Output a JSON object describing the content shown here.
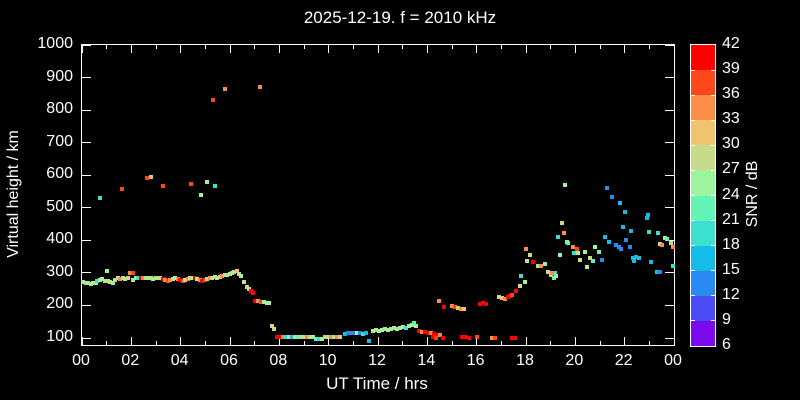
{
  "window": {
    "background": "#000000",
    "foreground": "#ffffff"
  },
  "chart_data": {
    "type": "scatter",
    "title": "2025-12-19. f = 2010 kHz",
    "xlabel": "UT Time / hrs",
    "ylabel": "Virtual height / km",
    "xlim": [
      0,
      24
    ],
    "ylim": [
      100,
      1000
    ],
    "grid": false,
    "x_major_tick_hours": [
      0,
      2,
      4,
      6,
      8,
      10,
      12,
      14,
      16,
      18,
      20,
      22,
      24
    ],
    "x_tick_labels": [
      "00",
      "02",
      "04",
      "06",
      "08",
      "10",
      "12",
      "14",
      "16",
      "18",
      "20",
      "22",
      "00"
    ],
    "x_minor_tick_hours": [
      1,
      3,
      5,
      7,
      9,
      11,
      13,
      15,
      17,
      19,
      21,
      23
    ],
    "y_ticks": [
      100,
      200,
      300,
      400,
      500,
      600,
      700,
      800,
      900,
      1000
    ],
    "colorbar": {
      "label": "SNR / dB",
      "min": 6,
      "max": 42,
      "step": 3,
      "tick_values": [
        6,
        9,
        12,
        15,
        18,
        21,
        24,
        27,
        30,
        33,
        36,
        39,
        42
      ],
      "colors_low_to_high": [
        "#7a0bee",
        "#4b4bf5",
        "#2a8af4",
        "#15bce8",
        "#3cdfd0",
        "#61f4b4",
        "#9df49d",
        "#c6dc8b",
        "#f0c46e",
        "#fc8d47",
        "#ff4719",
        "#ff0000"
      ]
    },
    "points_format": [
      "ut_hours",
      "virtual_height_km",
      "snr_db"
    ],
    "points": [
      [
        0.05,
        272,
        25
      ],
      [
        0.15,
        270,
        27
      ],
      [
        0.25,
        268,
        25
      ],
      [
        0.35,
        266,
        27
      ],
      [
        0.45,
        270,
        25
      ],
      [
        0.55,
        268,
        25
      ],
      [
        0.62,
        275,
        19
      ],
      [
        0.72,
        278,
        27
      ],
      [
        0.82,
        280,
        25
      ],
      [
        0.92,
        274,
        27
      ],
      [
        1.0,
        307,
        25
      ],
      [
        1.05,
        276,
        25
      ],
      [
        1.15,
        272,
        28
      ],
      [
        1.25,
        270,
        25
      ],
      [
        1.35,
        278,
        27
      ],
      [
        1.45,
        283,
        25
      ],
      [
        1.55,
        280,
        34
      ],
      [
        1.65,
        283,
        27
      ],
      [
        1.75,
        280,
        25
      ],
      [
        1.85,
        283,
        28
      ],
      [
        1.95,
        300,
        34
      ],
      [
        2.05,
        300,
        36
      ],
      [
        2.08,
        278,
        27
      ],
      [
        2.18,
        283,
        25
      ],
      [
        2.28,
        285,
        19
      ],
      [
        2.38,
        283,
        40
      ],
      [
        2.48,
        285,
        34
      ],
      [
        2.58,
        283,
        27
      ],
      [
        2.68,
        285,
        25
      ],
      [
        2.78,
        283,
        27
      ],
      [
        2.88,
        280,
        25
      ],
      [
        2.98,
        283,
        27
      ],
      [
        3.08,
        285,
        25
      ],
      [
        3.18,
        283,
        27
      ],
      [
        3.28,
        280,
        40
      ],
      [
        3.38,
        278,
        34
      ],
      [
        3.48,
        275,
        36
      ],
      [
        3.58,
        278,
        34
      ],
      [
        3.68,
        280,
        27
      ],
      [
        3.78,
        283,
        25
      ],
      [
        3.88,
        280,
        34
      ],
      [
        3.98,
        278,
        40
      ],
      [
        4.08,
        275,
        36
      ],
      [
        4.18,
        278,
        27
      ],
      [
        4.28,
        280,
        34
      ],
      [
        4.38,
        283,
        27
      ],
      [
        4.48,
        285,
        25
      ],
      [
        4.58,
        283,
        40
      ],
      [
        4.68,
        280,
        25
      ],
      [
        4.78,
        278,
        34
      ],
      [
        4.88,
        275,
        40
      ],
      [
        4.98,
        278,
        36
      ],
      [
        5.08,
        280,
        27
      ],
      [
        5.18,
        283,
        34
      ],
      [
        5.28,
        285,
        27
      ],
      [
        5.38,
        288,
        25
      ],
      [
        5.48,
        285,
        27
      ],
      [
        5.58,
        288,
        28
      ],
      [
        5.68,
        290,
        34
      ],
      [
        5.78,
        292,
        27
      ],
      [
        5.88,
        295,
        25
      ],
      [
        5.98,
        297,
        27
      ],
      [
        6.08,
        300,
        25
      ],
      [
        6.18,
        303,
        27
      ],
      [
        6.28,
        305,
        30
      ],
      [
        6.35,
        298,
        27
      ],
      [
        6.45,
        290,
        25
      ],
      [
        0.73,
        530,
        19
      ],
      [
        1.62,
        558,
        36
      ],
      [
        2.64,
        591,
        36
      ],
      [
        2.78,
        594,
        30
      ],
      [
        3.28,
        567,
        36
      ],
      [
        4.42,
        573,
        36
      ],
      [
        4.82,
        539,
        25
      ],
      [
        5.07,
        579,
        25
      ],
      [
        5.39,
        567,
        19
      ],
      [
        5.3,
        832,
        36
      ],
      [
        5.8,
        866,
        33
      ],
      [
        7.22,
        871,
        33
      ],
      [
        6.57,
        271,
        28
      ],
      [
        6.68,
        258,
        27
      ],
      [
        6.77,
        250,
        28
      ],
      [
        6.85,
        243,
        40
      ],
      [
        6.93,
        237,
        40
      ],
      [
        7.01,
        213,
        40
      ],
      [
        7.12,
        215,
        34
      ],
      [
        7.25,
        212,
        36
      ],
      [
        7.38,
        210,
        25
      ],
      [
        7.5,
        208,
        25
      ],
      [
        7.58,
        207,
        25
      ],
      [
        7.7,
        137,
        28
      ],
      [
        7.78,
        128,
        28
      ],
      [
        7.92,
        103,
        40
      ],
      [
        8.04,
        103,
        40
      ],
      [
        8.16,
        104,
        34
      ],
      [
        8.28,
        103,
        19
      ],
      [
        8.4,
        102,
        28
      ],
      [
        8.52,
        103,
        16
      ],
      [
        8.64,
        104,
        28
      ],
      [
        8.76,
        103,
        22
      ],
      [
        8.88,
        104,
        27
      ],
      [
        9.0,
        103,
        28
      ],
      [
        9.12,
        104,
        34
      ],
      [
        9.24,
        103,
        28
      ],
      [
        9.36,
        102,
        25
      ],
      [
        9.48,
        97,
        22
      ],
      [
        9.6,
        96,
        19
      ],
      [
        9.72,
        98,
        25
      ],
      [
        9.84,
        103,
        28
      ],
      [
        9.96,
        104,
        27
      ],
      [
        10.08,
        103,
        34
      ],
      [
        10.2,
        104,
        28
      ],
      [
        10.32,
        103,
        33
      ],
      [
        10.44,
        104,
        28
      ],
      [
        10.65,
        113,
        16
      ],
      [
        10.78,
        114,
        13
      ],
      [
        10.9,
        116,
        13
      ],
      [
        11.02,
        114,
        13
      ],
      [
        11.14,
        116,
        25
      ],
      [
        11.26,
        114,
        13
      ],
      [
        11.38,
        112,
        19
      ],
      [
        11.5,
        114,
        16
      ],
      [
        11.64,
        91,
        16
      ],
      [
        11.8,
        122,
        25
      ],
      [
        11.92,
        125,
        28
      ],
      [
        12.04,
        123,
        25
      ],
      [
        12.16,
        125,
        25
      ],
      [
        12.28,
        128,
        28
      ],
      [
        12.4,
        126,
        25
      ],
      [
        12.52,
        128,
        28
      ],
      [
        12.64,
        131,
        25
      ],
      [
        12.76,
        129,
        25
      ],
      [
        12.88,
        131,
        28
      ],
      [
        13.0,
        134,
        25
      ],
      [
        13.12,
        132,
        19
      ],
      [
        13.24,
        137,
        25
      ],
      [
        13.36,
        140,
        25
      ],
      [
        13.45,
        146,
        22
      ],
      [
        13.55,
        136,
        25
      ],
      [
        13.65,
        120,
        40
      ],
      [
        13.78,
        119,
        34
      ],
      [
        13.9,
        117,
        40
      ],
      [
        14.02,
        116,
        40
      ],
      [
        14.15,
        114,
        34
      ],
      [
        14.28,
        112,
        40
      ],
      [
        14.4,
        110,
        40
      ],
      [
        14.5,
        108,
        34
      ],
      [
        14.22,
        103,
        40
      ],
      [
        14.34,
        101,
        36
      ],
      [
        14.62,
        100,
        40
      ],
      [
        15.42,
        103,
        40
      ],
      [
        15.55,
        102,
        42
      ],
      [
        15.7,
        101,
        40
      ],
      [
        16.0,
        102,
        36
      ],
      [
        16.62,
        101,
        34
      ],
      [
        16.75,
        100,
        36
      ],
      [
        17.42,
        101,
        40
      ],
      [
        17.55,
        100,
        40
      ],
      [
        14.48,
        213,
        34
      ],
      [
        14.68,
        195,
        40
      ],
      [
        15.02,
        198,
        34
      ],
      [
        15.14,
        196,
        36
      ],
      [
        15.26,
        193,
        30
      ],
      [
        15.38,
        190,
        33
      ],
      [
        15.5,
        188,
        30
      ],
      [
        16.12,
        205,
        42
      ],
      [
        16.24,
        207,
        42
      ],
      [
        16.36,
        205,
        39
      ],
      [
        16.9,
        225,
        28
      ],
      [
        17.02,
        222,
        30
      ],
      [
        17.15,
        219,
        33
      ],
      [
        17.28,
        225,
        42
      ],
      [
        17.36,
        228,
        40
      ],
      [
        17.45,
        231,
        36
      ],
      [
        17.6,
        243,
        40
      ],
      [
        17.75,
        259,
        28
      ],
      [
        17.8,
        289,
        19
      ],
      [
        17.95,
        271,
        25
      ],
      [
        18.0,
        372,
        34
      ],
      [
        18.06,
        335,
        28
      ],
      [
        18.16,
        356,
        28
      ],
      [
        18.3,
        332,
        40
      ],
      [
        18.5,
        320,
        28
      ],
      [
        18.62,
        320,
        34
      ],
      [
        18.76,
        326,
        25
      ],
      [
        18.9,
        304,
        28
      ],
      [
        19.0,
        295,
        28
      ],
      [
        19.06,
        301,
        34
      ],
      [
        19.12,
        285,
        22
      ],
      [
        19.18,
        301,
        19
      ],
      [
        19.22,
        289,
        25
      ],
      [
        19.3,
        411,
        19
      ],
      [
        19.36,
        356,
        25
      ],
      [
        19.45,
        454,
        28
      ],
      [
        19.55,
        423,
        34
      ],
      [
        19.6,
        570,
        25
      ],
      [
        19.66,
        396,
        25
      ],
      [
        19.72,
        393,
        22
      ],
      [
        19.9,
        381,
        34
      ],
      [
        19.96,
        362,
        19
      ],
      [
        20.05,
        372,
        36
      ],
      [
        20.12,
        362,
        25
      ],
      [
        20.18,
        341,
        28
      ],
      [
        20.4,
        365,
        25
      ],
      [
        20.46,
        317,
        25
      ],
      [
        20.6,
        347,
        28
      ],
      [
        20.7,
        335,
        22
      ],
      [
        20.8,
        381,
        25
      ],
      [
        20.95,
        365,
        22
      ],
      [
        21.1,
        341,
        13
      ],
      [
        21.22,
        411,
        16
      ],
      [
        21.3,
        561,
        13
      ],
      [
        21.36,
        396,
        16
      ],
      [
        21.5,
        533,
        13
      ],
      [
        21.65,
        387,
        13
      ],
      [
        21.76,
        378,
        13
      ],
      [
        21.85,
        372,
        13
      ],
      [
        21.8,
        515,
        16
      ],
      [
        21.92,
        442,
        16
      ],
      [
        22.0,
        487,
        16
      ],
      [
        22.06,
        402,
        13
      ],
      [
        22.2,
        381,
        13
      ],
      [
        22.26,
        430,
        16
      ],
      [
        22.32,
        347,
        16
      ],
      [
        22.38,
        335,
        16
      ],
      [
        22.46,
        350,
        16
      ],
      [
        22.6,
        347,
        16
      ],
      [
        22.9,
        469,
        16
      ],
      [
        22.96,
        478,
        16
      ],
      [
        23.0,
        427,
        19
      ],
      [
        23.06,
        332,
        16
      ],
      [
        23.3,
        304,
        16
      ],
      [
        23.36,
        423,
        19
      ],
      [
        23.42,
        390,
        28
      ],
      [
        23.42,
        304,
        13
      ],
      [
        23.52,
        387,
        34
      ],
      [
        23.62,
        408,
        25
      ],
      [
        23.72,
        405,
        22
      ],
      [
        23.86,
        393,
        28
      ],
      [
        23.94,
        378,
        34
      ],
      [
        23.96,
        320,
        19
      ]
    ]
  }
}
